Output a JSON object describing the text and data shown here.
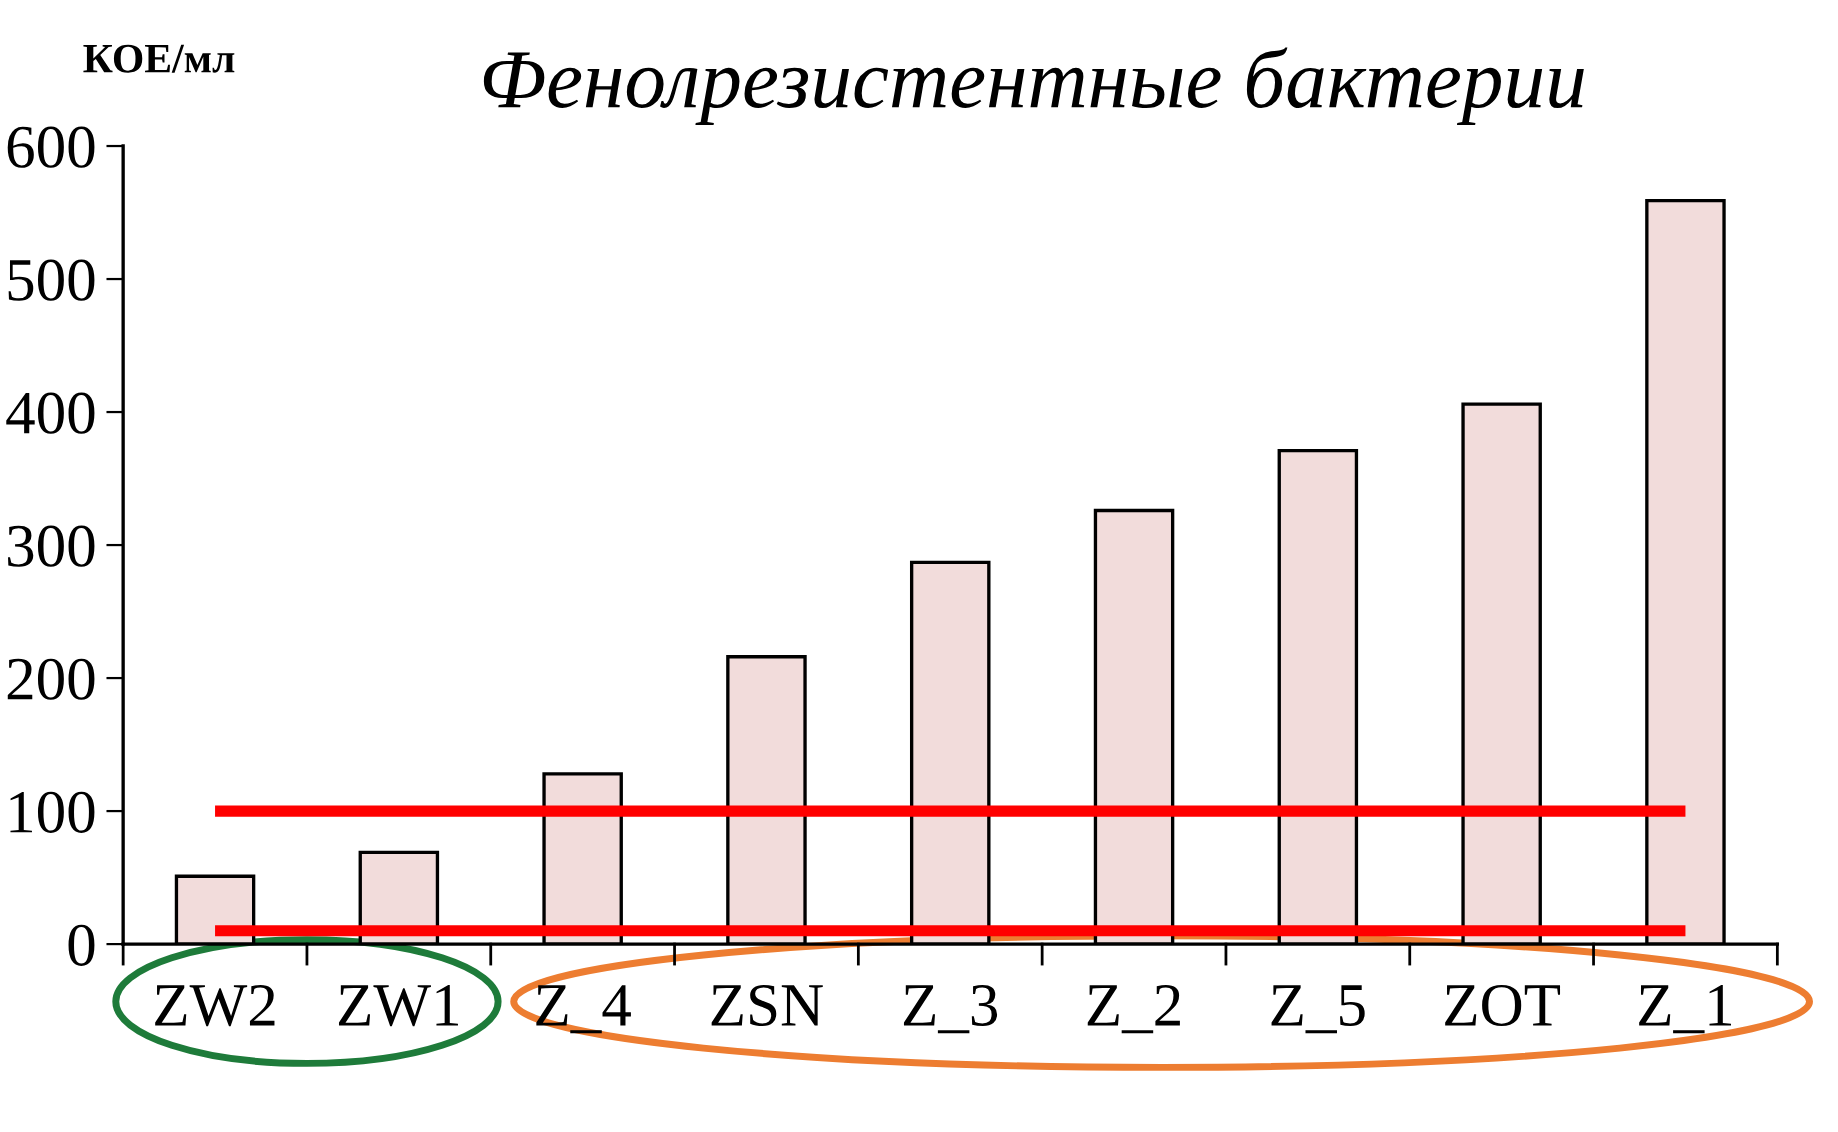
{
  "chart_data": {
    "type": "bar",
    "title": "Фенолрезистентные бактерии",
    "ylabel": "КОЕ/мл",
    "categories": [
      "ZW2",
      "ZW1",
      "Z_4",
      "ZSN",
      "Z_3",
      "Z_2",
      "Z_5",
      "ZOT",
      "Z_1"
    ],
    "values": [
      51,
      69,
      128,
      216,
      287,
      326,
      371,
      406,
      559
    ],
    "color": "#f2dcdb",
    "ylim": [
      0,
      600
    ],
    "yticks": [
      0,
      100,
      200,
      300,
      400,
      500,
      600
    ],
    "grid": false,
    "legend": false,
    "ref_lines": [
      {
        "axis": "y",
        "value": 100,
        "color": "#ff0000"
      },
      {
        "axis": "y",
        "value": 10,
        "color": "#ff0000"
      }
    ]
  }
}
